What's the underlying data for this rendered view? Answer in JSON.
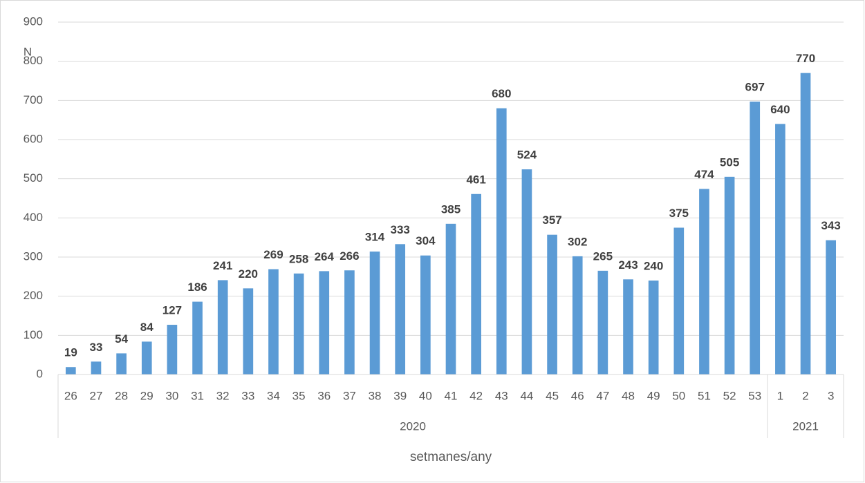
{
  "chart_data": {
    "type": "bar",
    "y_label": "N",
    "x_label": "setmanes/any",
    "categories": [
      "26",
      "27",
      "28",
      "29",
      "30",
      "31",
      "32",
      "33",
      "34",
      "35",
      "36",
      "37",
      "38",
      "39",
      "40",
      "41",
      "42",
      "43",
      "44",
      "45",
      "46",
      "47",
      "48",
      "49",
      "50",
      "51",
      "52",
      "53",
      "1",
      "2",
      "3"
    ],
    "values": [
      19,
      33,
      54,
      84,
      127,
      186,
      241,
      220,
      269,
      258,
      264,
      266,
      314,
      333,
      304,
      385,
      461,
      680,
      524,
      357,
      302,
      265,
      243,
      240,
      375,
      474,
      505,
      697,
      640,
      770,
      343
    ],
    "x_groups": [
      {
        "label": "2020",
        "start": "26",
        "end": "53"
      },
      {
        "label": "2021",
        "start": "1",
        "end": "3"
      }
    ],
    "color": "#5b9bd5",
    "ylim": [
      0,
      900
    ],
    "yticks": [
      0,
      100,
      200,
      300,
      400,
      500,
      600,
      700,
      800,
      900
    ],
    "grid": true
  }
}
